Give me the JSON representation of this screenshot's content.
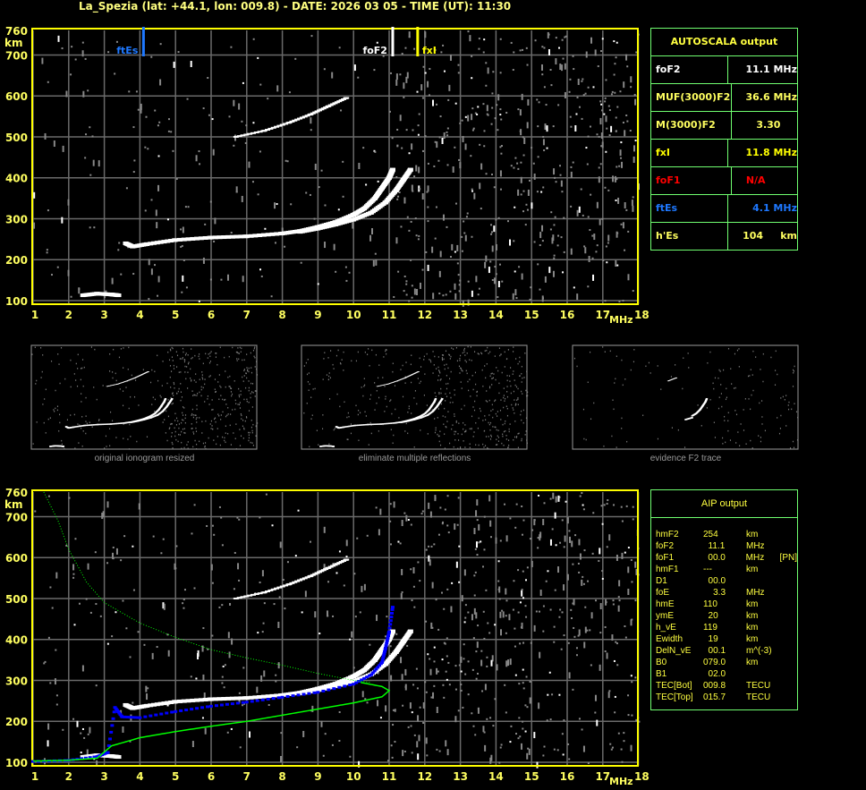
{
  "title": "La_Spezia (lat: +44.1, lon: 009.8) - DATE: 2026 03 05 - TIME (UT): 11:30",
  "colors": {
    "frame": "#ffff00",
    "grid": "#6a6a6a",
    "axis_text": "#ffff60",
    "trace": "#ffffff",
    "profile_fit": "#0000ff",
    "model": "#00ff00",
    "foF2_marker": "#ffffff",
    "fxI_marker": "#ffff00",
    "ftEs_marker": "#1e78ff",
    "foF1": "#ff0000",
    "table_border": "#70ff70"
  },
  "markers": [
    {
      "label": "ftEs",
      "freq": 4.1,
      "color": "#1e78ff"
    },
    {
      "label": "foF2",
      "freq": 11.1,
      "color": "#ffffff"
    },
    {
      "label": "fxI",
      "freq": 11.8,
      "color": "#ffff00"
    }
  ],
  "autoscala": {
    "title": "AUTOSCALA output",
    "rows": [
      {
        "key": "foF2",
        "value": "  11.1 MHz",
        "color": "#ffffff"
      },
      {
        "key": "MUF(3000)F2",
        "value": " 36.6 MHz",
        "color": "#ffff60"
      },
      {
        "key": "M(3000)F2",
        "value": "    3.30",
        "color": "#ffff60"
      },
      {
        "key": "fxI",
        "value": "  11.8 MHz",
        "color": "#ffff00"
      },
      {
        "key": "foF1",
        "value": " N/A",
        "color": "#ff0000"
      },
      {
        "key": "ftEs",
        "value": "    4.1 MHz",
        "color": "#1e78ff"
      },
      {
        "key": "h'Es",
        "value": " 104     km",
        "color": "#ffff60"
      }
    ]
  },
  "aip": {
    "title": "AIP output",
    "rows": [
      [
        "hmF2",
        "254",
        "km",
        ""
      ],
      [
        "foF2",
        "  11.1",
        "MHz",
        ""
      ],
      [
        "foF1",
        "  00.0",
        "MHz",
        "[PN]"
      ],
      [
        "hmF1",
        "---",
        "km",
        ""
      ],
      [
        "D1",
        "  00.0",
        "",
        ""
      ],
      [
        "foE",
        "    3.3",
        "MHz",
        ""
      ],
      [
        "hmE",
        "110",
        "km",
        ""
      ],
      [
        "ymE",
        "  20",
        "km",
        ""
      ],
      [
        "h_vE",
        "119",
        "km",
        ""
      ],
      [
        "Ewidth",
        "  19",
        "km",
        ""
      ],
      [
        "DelN_vE",
        "  00.1",
        "m^(-3)",
        ""
      ],
      [
        "B0",
        "079.0",
        "km",
        ""
      ],
      [
        "B1",
        "  02.0",
        "",
        ""
      ],
      [
        "TEC[Bot]",
        "009.8",
        "TECU",
        ""
      ],
      [
        "TEC[Top]",
        "015.7",
        "TECU",
        ""
      ]
    ]
  },
  "thumbnails": [
    "original ionogram resized",
    "eliminate multiple reflections",
    "evidence F2 trace"
  ],
  "chart_data": [
    {
      "type": "scatter",
      "title": "",
      "xlabel": "MHz",
      "ylabel": "km",
      "xlim": [
        1,
        18
      ],
      "ylim": [
        100,
        760
      ],
      "xticks": [
        "1",
        "2",
        "3",
        "4",
        "5",
        "6",
        "7",
        "8",
        "9",
        "10",
        "11",
        "12",
        "13",
        "14",
        "15",
        "16",
        "17",
        "18"
      ],
      "yticks": [
        "100",
        "200",
        "300",
        "400",
        "500",
        "600",
        "700",
        "760"
      ],
      "grid": true,
      "series": [
        {
          "kind": "o-trace",
          "points": [
            [
              3.6,
              240
            ],
            [
              3.8,
              232
            ],
            [
              4.2,
              238
            ],
            [
              5,
              248
            ],
            [
              6,
              254
            ],
            [
              7,
              257
            ],
            [
              8,
              264
            ],
            [
              8.5,
              270
            ],
            [
              9,
              280
            ],
            [
              9.5,
              292
            ],
            [
              10,
              310
            ],
            [
              10.3,
              325
            ],
            [
              10.6,
              350
            ],
            [
              10.8,
              375
            ],
            [
              11.0,
              400
            ],
            [
              11.1,
              420
            ]
          ]
        },
        {
          "kind": "x-trace",
          "points": [
            [
              8.5,
              268
            ],
            [
              9,
              276
            ],
            [
              9.5,
              286
            ],
            [
              10,
              298
            ],
            [
              10.5,
              315
            ],
            [
              10.9,
              340
            ],
            [
              11.2,
              370
            ],
            [
              11.4,
              395
            ],
            [
              11.6,
              420
            ]
          ]
        },
        {
          "kind": "multiple-hop",
          "points": [
            [
              6.7,
              500
            ],
            [
              7.5,
              515
            ],
            [
              8.2,
              535
            ],
            [
              8.8,
              555
            ],
            [
              9.3,
              575
            ],
            [
              9.8,
              595
            ]
          ]
        },
        {
          "kind": "es-trace",
          "points": [
            [
              2.4,
              113
            ],
            [
              2.8,
              117
            ],
            [
              3.2,
              115
            ],
            [
              3.4,
              113
            ]
          ]
        }
      ]
    },
    {
      "type": "line",
      "title": "",
      "xlabel": "MHz",
      "ylabel": "km",
      "xlim": [
        1,
        18
      ],
      "ylim": [
        100,
        760
      ],
      "grid": true,
      "series": [
        {
          "kind": "true-height-fit",
          "color": "#0000ff",
          "points": [
            [
              1,
              103
            ],
            [
              2,
              106
            ],
            [
              2.8,
              115
            ],
            [
              3.1,
              125
            ],
            [
              3.3,
              235
            ],
            [
              3.5,
              212
            ],
            [
              4,
              210
            ],
            [
              5,
              225
            ],
            [
              6,
              238
            ],
            [
              7,
              248
            ],
            [
              8,
              260
            ],
            [
              9,
              272
            ],
            [
              10,
              292
            ],
            [
              10.5,
              315
            ],
            [
              10.8,
              345
            ],
            [
              10.9,
              380
            ],
            [
              11.0,
              420
            ],
            [
              11.1,
              480
            ]
          ]
        },
        {
          "kind": "model-profile",
          "color": "#00ff00",
          "points": [
            [
              1,
              103
            ],
            [
              2,
              105
            ],
            [
              2.8,
              110
            ],
            [
              3,
              125
            ],
            [
              3.2,
              140
            ],
            [
              4,
              160
            ],
            [
              5,
              175
            ],
            [
              6,
              188
            ],
            [
              7,
              200
            ],
            [
              8,
              215
            ],
            [
              9,
              230
            ],
            [
              10,
              245
            ],
            [
              10.8,
              260
            ],
            [
              11.0,
              275
            ],
            [
              10.8,
              285
            ],
            [
              10.2,
              295
            ]
          ]
        },
        {
          "kind": "model-decay",
          "color": "#00ff00",
          "points": [
            [
              1.3,
              760
            ],
            [
              1.7,
              690
            ],
            [
              2,
              620
            ],
            [
              2.5,
              540
            ],
            [
              3,
              490
            ],
            [
              4,
              440
            ],
            [
              5,
              405
            ],
            [
              6,
              375
            ],
            [
              7,
              355
            ],
            [
              8,
              337
            ],
            [
              9,
              317
            ],
            [
              10,
              300
            ],
            [
              10.5,
              295
            ]
          ]
        }
      ]
    }
  ]
}
